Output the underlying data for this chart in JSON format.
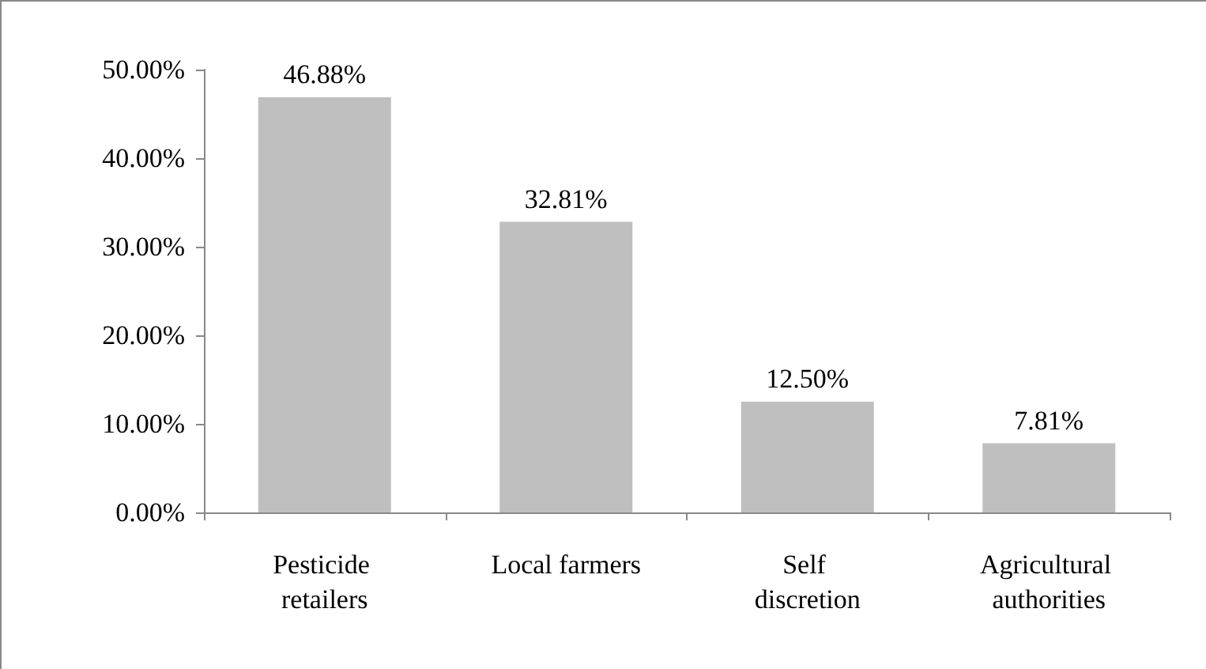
{
  "chart_data": {
    "type": "bar",
    "categories": [
      "Pesticide retailers",
      "Local farmers",
      "Self discretion",
      "Agricultural authorities"
    ],
    "values": [
      46.88,
      32.81,
      12.5,
      7.81
    ],
    "color": "#bfbfbf",
    "value_labels": [
      "46.88%",
      "32.81%",
      "12.50%",
      "7.81%"
    ],
    "ylim": [
      0,
      50
    ],
    "yticks": [
      {
        "value": 0,
        "label": "0.00%"
      },
      {
        "value": 10,
        "label": "10.00%"
      },
      {
        "value": 20,
        "label": "20.00%"
      },
      {
        "value": 30,
        "label": "30.00%"
      },
      {
        "value": 40,
        "label": "40.00%"
      },
      {
        "value": 50,
        "label": "50.00%"
      }
    ],
    "grid": false
  }
}
